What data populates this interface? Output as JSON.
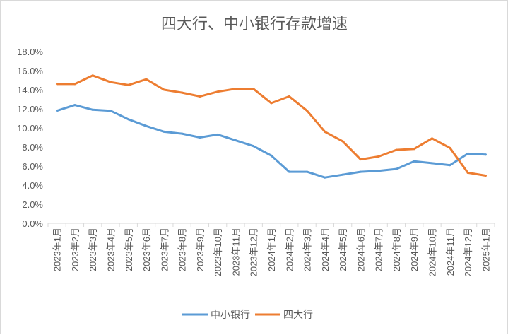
{
  "chart_data": {
    "type": "line",
    "title": "四大行、中小银行存款增速",
    "xlabel": "",
    "ylabel": "",
    "ylim": [
      0,
      18
    ],
    "yticks": [
      "0.0%",
      "2.0%",
      "4.0%",
      "6.0%",
      "8.0%",
      "10.0%",
      "12.0%",
      "14.0%",
      "16.0%",
      "18.0%"
    ],
    "categories": [
      "2023年1月",
      "2023年2月",
      "2023年3月",
      "2023年4月",
      "2023年5月",
      "2023年6月",
      "2023年7月",
      "2023年8月",
      "2023年9月",
      "2023年10月",
      "2023年11月",
      "2023年12月",
      "2024年1月",
      "2024年2月",
      "2024年3月",
      "2024年4月",
      "2024年5月",
      "2024年6月",
      "2024年7月",
      "2024年8月",
      "2024年9月",
      "2024年10月",
      "2024年11月",
      "2024年12月",
      "2025年1月"
    ],
    "series": [
      {
        "name": "中小银行",
        "color": "#5b9bd5",
        "values": [
          11.8,
          12.4,
          11.9,
          11.8,
          10.9,
          10.2,
          9.6,
          9.4,
          9.0,
          9.3,
          8.7,
          8.1,
          7.1,
          5.4,
          5.4,
          4.8,
          5.1,
          5.4,
          5.5,
          5.7,
          6.5,
          6.3,
          6.1,
          7.3,
          7.2
        ]
      },
      {
        "name": "四大行",
        "color": "#ed7d31",
        "values": [
          14.6,
          14.6,
          15.5,
          14.8,
          14.5,
          15.1,
          14.0,
          13.7,
          13.3,
          13.8,
          14.1,
          14.1,
          12.6,
          13.3,
          11.8,
          9.6,
          8.6,
          6.7,
          7.0,
          7.7,
          7.8,
          8.9,
          7.9,
          5.3,
          5.0
        ]
      }
    ],
    "grid": false,
    "legend": "bottom"
  }
}
